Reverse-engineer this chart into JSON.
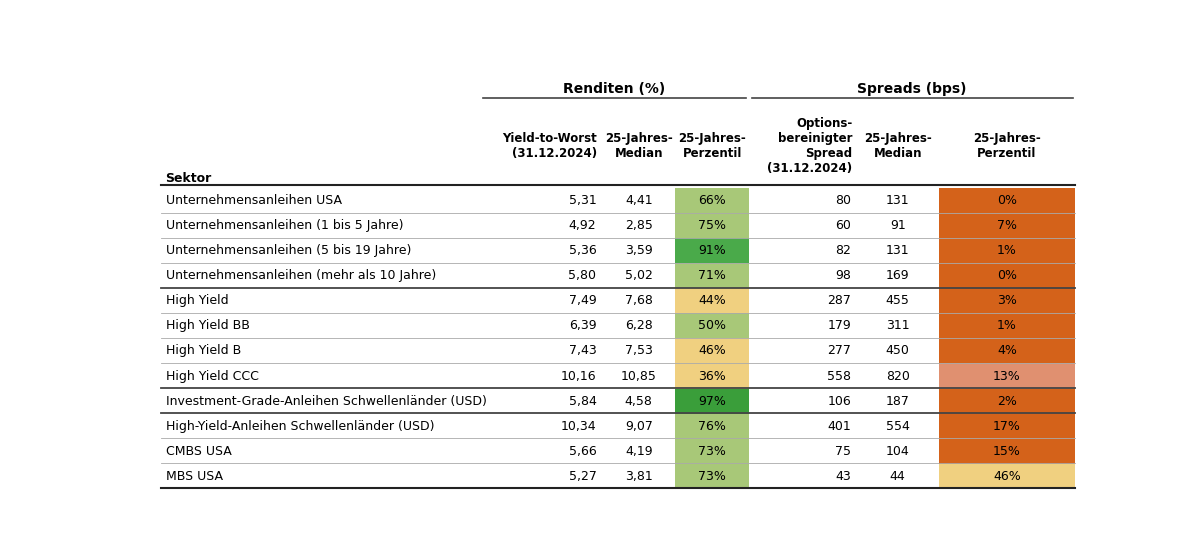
{
  "title_renditen": "Renditen (%)",
  "title_spreads": "Spreads (bps)",
  "col_headers_line1": [
    "Yield-to-Worst",
    "25-Jahres-",
    "25-Jahres-",
    "Options-",
    "25-Jahres-",
    "25-Jahres-"
  ],
  "col_headers_line2": [
    "(31.12.2024)",
    "Median",
    "Perzentil",
    "bereinigter",
    "Median",
    "Perzentil"
  ],
  "col_headers_line3": [
    "",
    "",
    "",
    "Spread",
    "",
    ""
  ],
  "col_headers_line4": [
    "",
    "",
    "",
    "(31.12.2024)",
    "",
    ""
  ],
  "row_header": "Sektor",
  "sectors": [
    "Unternehmensanleihen USA",
    "Unternehmensanleihen (1 bis 5 Jahre)",
    "Unternehmensanleihen (5 bis 19 Jahre)",
    "Unternehmensanleihen (mehr als 10 Jahre)",
    "High Yield",
    "High Yield BB",
    "High Yield B",
    "High Yield CCC",
    "Investment-Grade-Anleihen Schwellenländer (USD)",
    "High-Yield-Anleihen Schwellenländer (USD)",
    "CMBS USA",
    "MBS USA"
  ],
  "ytw": [
    "5,31",
    "4,92",
    "5,36",
    "5,80",
    "7,49",
    "6,39",
    "7,43",
    "10,16",
    "5,84",
    "10,34",
    "5,66",
    "5,27"
  ],
  "median_renditen": [
    "4,41",
    "2,85",
    "3,59",
    "5,02",
    "7,68",
    "6,28",
    "7,53",
    "10,85",
    "4,58",
    "9,07",
    "4,19",
    "3,81"
  ],
  "perzentil_renditen": [
    "66%",
    "75%",
    "91%",
    "71%",
    "44%",
    "50%",
    "46%",
    "36%",
    "97%",
    "76%",
    "73%",
    "73%"
  ],
  "spread": [
    "80",
    "60",
    "82",
    "98",
    "287",
    "179",
    "277",
    "558",
    "106",
    "401",
    "75",
    "43"
  ],
  "median_spreads": [
    "131",
    "91",
    "131",
    "169",
    "455",
    "311",
    "450",
    "820",
    "187",
    "554",
    "104",
    "44"
  ],
  "perzentil_spreads": [
    "0%",
    "7%",
    "1%",
    "0%",
    "3%",
    "1%",
    "4%",
    "13%",
    "2%",
    "17%",
    "15%",
    "46%"
  ],
  "renditen_pct_colors": [
    "#a8c878",
    "#a8c878",
    "#4aaa4a",
    "#a8c878",
    "#f0d080",
    "#a8c878",
    "#f0d080",
    "#f0d080",
    "#3a9e3a",
    "#a8c878",
    "#a8c878",
    "#a8c878"
  ],
  "spread_pct_colors": [
    "#d4621a",
    "#d4621a",
    "#d4621a",
    "#d4621a",
    "#d4621a",
    "#d4621a",
    "#d4621a",
    "#e09070",
    "#d4621a",
    "#d4621a",
    "#d4621a",
    "#f0d080"
  ],
  "bg_color": "#ffffff",
  "thick_sep_after": [
    3,
    7,
    8
  ]
}
